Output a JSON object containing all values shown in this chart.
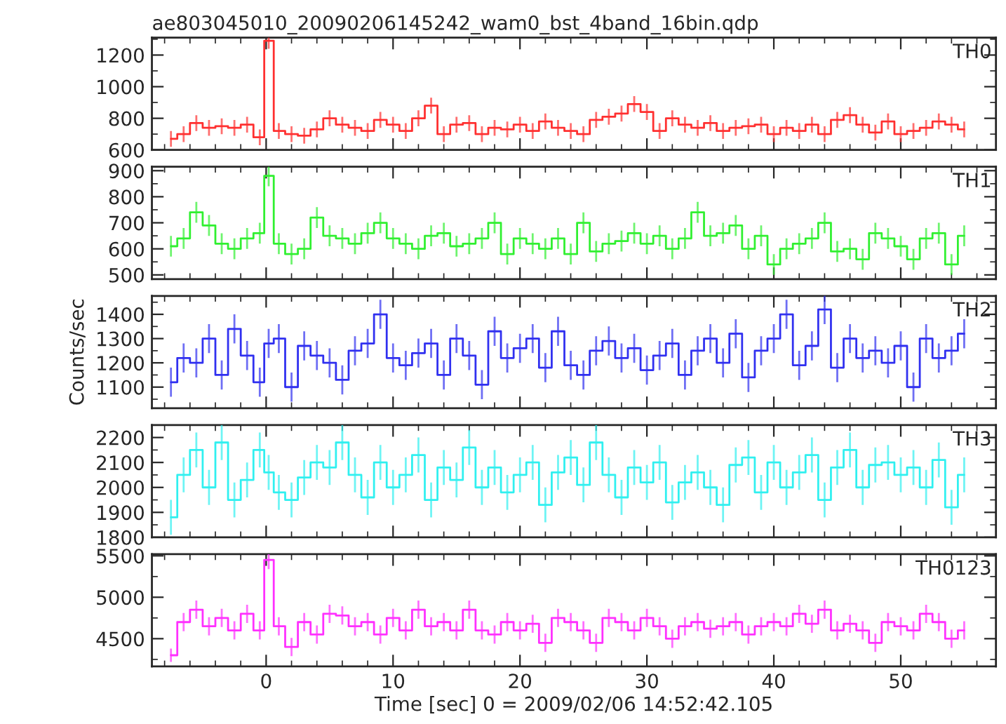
{
  "chart_data": [
    {
      "type": "step",
      "title": "ae803045010_20090206145242_wam0_bst_4band_16bin.qdp",
      "annotations": [
        "TH0"
      ],
      "tick_labels": "y",
      "x": [
        -7.5,
        -6.5,
        -5.5,
        -4.5,
        -3.5,
        -2.5,
        -1.5,
        -0.5,
        0.2,
        1,
        2,
        3,
        4,
        5,
        6,
        7,
        8,
        9,
        10,
        11,
        12,
        13,
        14,
        15,
        16,
        17,
        18,
        19,
        20,
        21,
        22,
        23,
        24,
        25,
        26,
        27,
        28,
        29,
        30,
        31,
        32,
        33,
        34,
        35,
        36,
        37,
        38,
        39,
        40,
        41,
        42,
        43,
        44,
        45,
        46,
        47,
        48,
        49,
        50,
        51,
        52,
        53,
        54,
        55
      ],
      "xlim": [
        -9,
        57.5
      ],
      "xticks": [
        0,
        10,
        20,
        30,
        40,
        50
      ],
      "ylim": [
        600,
        1310
      ],
      "yticks": [
        600,
        800,
        1000,
        1200
      ],
      "series": [
        {
          "color": "#ff3030",
          "values": [
            670,
            700,
            770,
            740,
            750,
            740,
            760,
            680,
            1290,
            720,
            700,
            690,
            730,
            800,
            760,
            740,
            720,
            790,
            760,
            720,
            800,
            880,
            700,
            760,
            770,
            700,
            740,
            730,
            760,
            720,
            780,
            740,
            720,
            700,
            790,
            810,
            830,
            890,
            840,
            720,
            800,
            760,
            740,
            770,
            720,
            740,
            750,
            760,
            700,
            740,
            720,
            760,
            700,
            790,
            820,
            760,
            710,
            780,
            700,
            720,
            740,
            780,
            760,
            730
          ],
          "errors": [
            50,
            50,
            50,
            50,
            50,
            50,
            50,
            50,
            50,
            50,
            50,
            50,
            50,
            50,
            50,
            50,
            50,
            50,
            50,
            50,
            50,
            50,
            50,
            50,
            50,
            50,
            50,
            50,
            50,
            50,
            50,
            50,
            50,
            50,
            50,
            50,
            50,
            50,
            50,
            50,
            50,
            50,
            50,
            50,
            50,
            50,
            50,
            50,
            50,
            50,
            50,
            50,
            50,
            50,
            50,
            50,
            50,
            50,
            50,
            50,
            50,
            50,
            50,
            50
          ]
        }
      ]
    },
    {
      "type": "step",
      "annotations": [
        "TH1"
      ],
      "tick_labels": "y",
      "x": [
        -7.5,
        -6.5,
        -5.5,
        -4.5,
        -3.5,
        -2.5,
        -1.5,
        -0.5,
        0.2,
        1,
        2,
        3,
        4,
        5,
        6,
        7,
        8,
        9,
        10,
        11,
        12,
        13,
        14,
        15,
        16,
        17,
        18,
        19,
        20,
        21,
        22,
        23,
        24,
        25,
        26,
        27,
        28,
        29,
        30,
        31,
        32,
        33,
        34,
        35,
        36,
        37,
        38,
        39,
        40,
        41,
        42,
        43,
        44,
        45,
        46,
        47,
        48,
        49,
        50,
        51,
        52,
        53,
        54,
        55
      ],
      "xlim": [
        -9,
        57.5
      ],
      "xticks": [
        0,
        10,
        20,
        30,
        40,
        50
      ],
      "ylim": [
        484,
        915
      ],
      "yticks": [
        500,
        600,
        700,
        800,
        900
      ],
      "series": [
        {
          "color": "#30f030",
          "values": [
            610,
            640,
            740,
            690,
            620,
            600,
            640,
            660,
            880,
            620,
            580,
            600,
            720,
            650,
            640,
            620,
            660,
            700,
            640,
            620,
            600,
            650,
            660,
            610,
            620,
            640,
            700,
            580,
            640,
            620,
            600,
            640,
            580,
            700,
            590,
            620,
            630,
            660,
            620,
            650,
            600,
            640,
            740,
            650,
            660,
            690,
            600,
            650,
            540,
            600,
            620,
            640,
            700,
            590,
            600,
            560,
            660,
            640,
            610,
            560,
            640,
            660,
            540,
            650
          ],
          "errors": [
            40,
            40,
            40,
            40,
            40,
            40,
            40,
            40,
            40,
            40,
            40,
            40,
            40,
            40,
            40,
            40,
            40,
            40,
            40,
            40,
            40,
            40,
            40,
            40,
            40,
            40,
            40,
            40,
            40,
            40,
            40,
            40,
            40,
            40,
            40,
            40,
            40,
            40,
            40,
            40,
            40,
            40,
            40,
            40,
            40,
            40,
            40,
            40,
            40,
            40,
            40,
            40,
            40,
            40,
            40,
            40,
            40,
            40,
            40,
            40,
            40,
            40,
            40,
            40
          ]
        }
      ]
    },
    {
      "type": "step",
      "annotations": [
        "TH2"
      ],
      "tick_labels": "y",
      "ylabel": "Counts/sec",
      "x": [
        -7.5,
        -6.5,
        -5.5,
        -4.5,
        -3.5,
        -2.5,
        -1.5,
        -0.5,
        0.2,
        1,
        2,
        3,
        4,
        5,
        6,
        7,
        8,
        9,
        10,
        11,
        12,
        13,
        14,
        15,
        16,
        17,
        18,
        19,
        20,
        21,
        22,
        23,
        24,
        25,
        26,
        27,
        28,
        29,
        30,
        31,
        32,
        33,
        34,
        35,
        36,
        37,
        38,
        39,
        40,
        41,
        42,
        43,
        44,
        45,
        46,
        47,
        48,
        49,
        50,
        51,
        52,
        53,
        54,
        55
      ],
      "xlim": [
        -9,
        57.5
      ],
      "xticks": [
        0,
        10,
        20,
        30,
        40,
        50
      ],
      "ylim": [
        1013,
        1476
      ],
      "yticks": [
        1100,
        1200,
        1300,
        1400
      ],
      "series": [
        {
          "color": "#3030f0",
          "values": [
            1120,
            1220,
            1200,
            1300,
            1150,
            1340,
            1230,
            1120,
            1280,
            1300,
            1100,
            1270,
            1230,
            1200,
            1130,
            1250,
            1280,
            1400,
            1220,
            1190,
            1240,
            1280,
            1150,
            1300,
            1230,
            1110,
            1330,
            1220,
            1260,
            1300,
            1180,
            1330,
            1190,
            1150,
            1250,
            1290,
            1220,
            1260,
            1170,
            1230,
            1280,
            1150,
            1250,
            1300,
            1200,
            1320,
            1140,
            1250,
            1300,
            1400,
            1190,
            1270,
            1420,
            1180,
            1300,
            1220,
            1250,
            1200,
            1270,
            1100,
            1300,
            1220,
            1250,
            1320
          ],
          "errors": [
            60,
            60,
            60,
            60,
            60,
            60,
            60,
            60,
            60,
            60,
            60,
            60,
            60,
            60,
            60,
            60,
            60,
            60,
            60,
            60,
            60,
            60,
            60,
            60,
            60,
            60,
            60,
            60,
            60,
            60,
            60,
            60,
            60,
            60,
            60,
            60,
            60,
            60,
            60,
            60,
            60,
            60,
            60,
            60,
            60,
            60,
            60,
            60,
            60,
            60,
            60,
            60,
            60,
            60,
            60,
            60,
            60,
            60,
            60,
            60,
            60,
            60,
            60,
            60
          ]
        }
      ]
    },
    {
      "type": "step",
      "annotations": [
        "TH3"
      ],
      "tick_labels": "y",
      "x": [
        -7.5,
        -6.5,
        -5.5,
        -4.5,
        -3.5,
        -2.5,
        -1.5,
        -0.5,
        0.2,
        1,
        2,
        3,
        4,
        5,
        6,
        7,
        8,
        9,
        10,
        11,
        12,
        13,
        14,
        15,
        16,
        17,
        18,
        19,
        20,
        21,
        22,
        23,
        24,
        25,
        26,
        27,
        28,
        29,
        30,
        31,
        32,
        33,
        34,
        35,
        36,
        37,
        38,
        39,
        40,
        41,
        42,
        43,
        44,
        45,
        46,
        47,
        48,
        49,
        50,
        51,
        52,
        53,
        54,
        55
      ],
      "xlim": [
        -9,
        57.5
      ],
      "xticks": [
        0,
        10,
        20,
        30,
        40,
        50
      ],
      "ylim": [
        1800,
        2250
      ],
      "yticks": [
        1800,
        1900,
        2000,
        2100,
        2200
      ],
      "series": [
        {
          "color": "#30f0f0",
          "values": [
            1880,
            2050,
            2150,
            2000,
            2180,
            1950,
            2030,
            2150,
            2060,
            1980,
            1950,
            2040,
            2100,
            2080,
            2180,
            2050,
            1960,
            2100,
            2000,
            2050,
            2130,
            1950,
            2080,
            2030,
            2160,
            2000,
            2080,
            1980,
            2050,
            2100,
            1930,
            2060,
            2120,
            2010,
            2180,
            2050,
            1960,
            2080,
            2020,
            2100,
            1940,
            2020,
            2060,
            2000,
            1930,
            2090,
            2120,
            1980,
            2100,
            2000,
            2060,
            2130,
            1950,
            2080,
            2150,
            2000,
            2090,
            2100,
            2050,
            2080,
            2000,
            2110,
            1920,
            2050
          ],
          "errors": [
            70,
            70,
            70,
            70,
            70,
            70,
            70,
            70,
            70,
            70,
            70,
            70,
            70,
            70,
            70,
            70,
            70,
            70,
            70,
            70,
            70,
            70,
            70,
            70,
            70,
            70,
            70,
            70,
            70,
            70,
            70,
            70,
            70,
            70,
            70,
            70,
            70,
            70,
            70,
            70,
            70,
            70,
            70,
            70,
            70,
            70,
            70,
            70,
            70,
            70,
            70,
            70,
            70,
            70,
            70,
            70,
            70,
            70,
            70,
            70,
            70,
            70,
            70,
            70
          ]
        }
      ]
    },
    {
      "type": "step",
      "annotations": [
        "TH0123"
      ],
      "xlabel": "Time [sec] 0 = 2009/02/06 14:52:42.105",
      "x": [
        -7.5,
        -6.5,
        -5.5,
        -4.5,
        -3.5,
        -2.5,
        -1.5,
        -0.5,
        0.2,
        1,
        2,
        3,
        4,
        5,
        6,
        7,
        8,
        9,
        10,
        11,
        12,
        13,
        14,
        15,
        16,
        17,
        18,
        19,
        20,
        21,
        22,
        23,
        24,
        25,
        26,
        27,
        28,
        29,
        30,
        31,
        32,
        33,
        34,
        35,
        36,
        37,
        38,
        39,
        40,
        41,
        42,
        43,
        44,
        45,
        46,
        47,
        48,
        49,
        50,
        51,
        52,
        53,
        54,
        55
      ],
      "xlim": [
        -9,
        57.5
      ],
      "xticks": [
        0,
        10,
        20,
        30,
        40,
        50
      ],
      "ylim": [
        4165,
        5520
      ],
      "yticks": [
        4500,
        5000,
        5500
      ],
      "series": [
        {
          "color": "#ff30ff",
          "values": [
            4300,
            4700,
            4850,
            4650,
            4750,
            4600,
            4800,
            4600,
            5450,
            4650,
            4400,
            4700,
            4550,
            4800,
            4780,
            4650,
            4700,
            4550,
            4750,
            4600,
            4850,
            4650,
            4700,
            4600,
            4850,
            4600,
            4550,
            4700,
            4600,
            4680,
            4450,
            4750,
            4700,
            4600,
            4450,
            4750,
            4700,
            4600,
            4750,
            4650,
            4500,
            4650,
            4700,
            4620,
            4650,
            4700,
            4550,
            4650,
            4700,
            4650,
            4800,
            4680,
            4850,
            4600,
            4680,
            4600,
            4450,
            4700,
            4650,
            4600,
            4800,
            4700,
            4500,
            4600
          ],
          "errors": [
            80,
            110,
            110,
            110,
            110,
            110,
            110,
            110,
            110,
            110,
            110,
            110,
            110,
            110,
            110,
            110,
            110,
            110,
            110,
            110,
            110,
            110,
            110,
            110,
            110,
            110,
            110,
            110,
            110,
            110,
            110,
            110,
            110,
            110,
            110,
            110,
            110,
            110,
            110,
            110,
            110,
            110,
            110,
            110,
            110,
            110,
            110,
            110,
            110,
            110,
            110,
            110,
            110,
            110,
            110,
            110,
            110,
            110,
            110,
            110,
            110,
            110,
            110,
            110
          ]
        }
      ]
    }
  ]
}
